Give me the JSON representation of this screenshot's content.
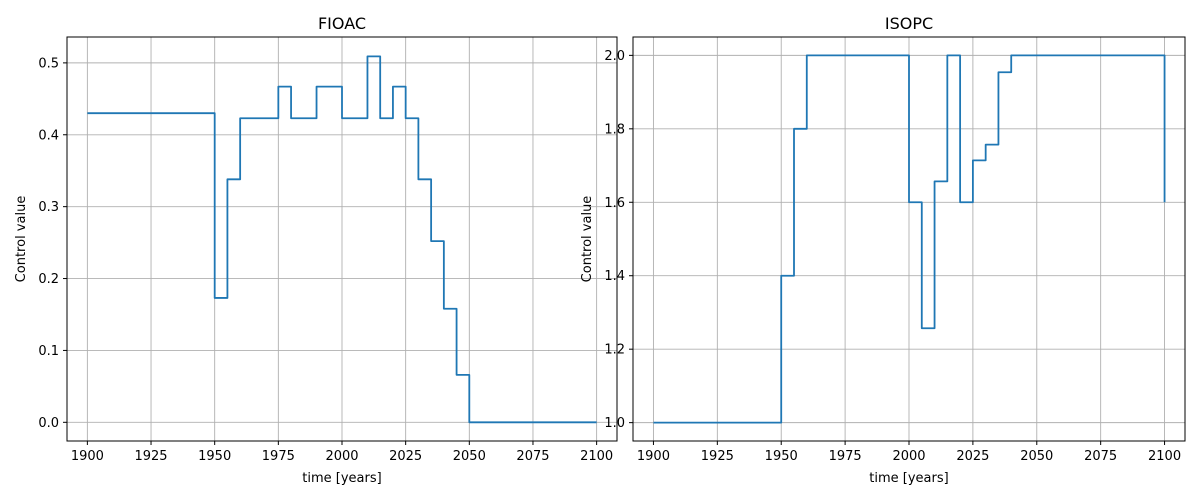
{
  "chart_data": [
    {
      "type": "line",
      "title": "FIOAC",
      "xlabel": "time [years]",
      "ylabel": "Control value",
      "xlim": [
        1892,
        2108
      ],
      "ylim": [
        -0.026,
        0.536
      ],
      "xticks": [
        1900,
        1925,
        1950,
        1975,
        2000,
        2025,
        2050,
        2075,
        2100
      ],
      "xtick_labels": [
        "1900",
        "1925",
        "1950",
        "1975",
        "2000",
        "2025",
        "2050",
        "2075",
        "2100"
      ],
      "yticks": [
        0.0,
        0.1,
        0.2,
        0.3,
        0.4,
        0.5
      ],
      "ytick_labels": [
        "0.0",
        "0.1",
        "0.2",
        "0.3",
        "0.4",
        "0.5"
      ],
      "grid": true,
      "series": [
        {
          "color": "#1f77b4",
          "x": [
            1900,
            1950,
            1950,
            1955,
            1955,
            1960,
            1960,
            1975,
            1975,
            1980,
            1980,
            1990,
            1990,
            2000,
            2000,
            2010,
            2010,
            2015,
            2015,
            2020,
            2020,
            2025,
            2025,
            2030,
            2030,
            2035,
            2035,
            2040,
            2040,
            2045,
            2045,
            2050,
            2050,
            2100
          ],
          "y": [
            0.43,
            0.43,
            0.173,
            0.173,
            0.338,
            0.338,
            0.423,
            0.423,
            0.467,
            0.467,
            0.423,
            0.423,
            0.467,
            0.467,
            0.423,
            0.423,
            0.509,
            0.509,
            0.423,
            0.423,
            0.467,
            0.467,
            0.423,
            0.423,
            0.338,
            0.338,
            0.252,
            0.252,
            0.158,
            0.158,
            0.066,
            0.066,
            0.0,
            0.0
          ]
        }
      ]
    },
    {
      "type": "line",
      "title": "ISOPC",
      "xlabel": "time [years]",
      "ylabel": "Control value",
      "xlim": [
        1892,
        2108
      ],
      "ylim": [
        0.95,
        2.05
      ],
      "xticks": [
        1900,
        1925,
        1950,
        1975,
        2000,
        2025,
        2050,
        2075,
        2100
      ],
      "xtick_labels": [
        "1900",
        "1925",
        "1950",
        "1975",
        "2000",
        "2025",
        "2050",
        "2075",
        "2100"
      ],
      "yticks": [
        1.0,
        1.2,
        1.4,
        1.6,
        1.8,
        2.0
      ],
      "ytick_labels": [
        "1.0",
        "1.2",
        "1.4",
        "1.6",
        "1.8",
        "2.0"
      ],
      "grid": true,
      "series": [
        {
          "color": "#1f77b4",
          "x": [
            1900,
            1950,
            1950,
            1955,
            1955,
            1960,
            1960,
            2000,
            2000,
            2005,
            2005,
            2010,
            2010,
            2015,
            2015,
            2020,
            2020,
            2025,
            2025,
            2030,
            2030,
            2035,
            2035,
            2040,
            2040,
            2100,
            2100
          ],
          "y": [
            1.0,
            1.0,
            1.4,
            1.4,
            1.8,
            1.8,
            2.0,
            2.0,
            1.6,
            1.6,
            1.257,
            1.257,
            1.657,
            1.657,
            2.0,
            2.0,
            1.6,
            1.6,
            1.714,
            1.714,
            1.757,
            1.757,
            1.954,
            1.954,
            2.0,
            2.0,
            1.6
          ]
        }
      ]
    }
  ]
}
